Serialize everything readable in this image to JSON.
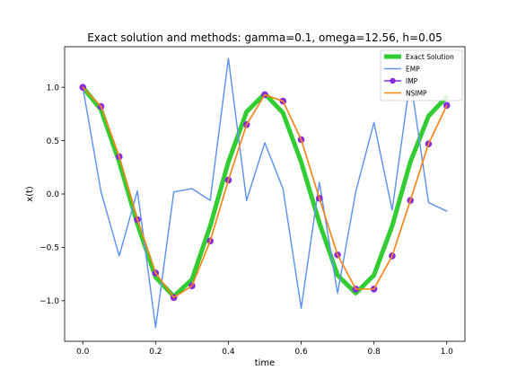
{
  "chart_data": {
    "type": "line",
    "title": "Exact solution and methods: gamma=0.1, omega=12.56, h=0.05",
    "xlabel": "time",
    "ylabel": "x(t)",
    "xlim": [
      -0.05,
      1.05
    ],
    "ylim": [
      -1.38,
      1.38
    ],
    "xticks": [
      {
        "value": 0.0,
        "label": "0.0"
      },
      {
        "value": 0.2,
        "label": "0.2"
      },
      {
        "value": 0.4,
        "label": "0.4"
      },
      {
        "value": 0.6,
        "label": "0.6"
      },
      {
        "value": 0.8,
        "label": "0.8"
      },
      {
        "value": 1.0,
        "label": "1.0"
      }
    ],
    "yticks": [
      {
        "value": 1.0,
        "label": "1.0"
      },
      {
        "value": 0.5,
        "label": "0.5"
      },
      {
        "value": 0.0,
        "label": "0.0"
      },
      {
        "value": -0.5,
        "label": "−0.5"
      },
      {
        "value": -1.0,
        "label": "−1.0"
      }
    ],
    "grid": false,
    "legend_position": "top-right",
    "x": [
      0.0,
      0.05,
      0.1,
      0.15,
      0.2,
      0.25,
      0.3,
      0.35,
      0.4,
      0.45,
      0.5,
      0.55,
      0.6,
      0.65,
      0.7,
      0.75,
      0.8,
      0.85,
      0.9,
      0.95,
      1.0
    ],
    "series": [
      {
        "name": "Exact Solution",
        "color": "#32cd32",
        "line_width": 5,
        "marker": "none",
        "values": [
          1.0,
          0.79,
          0.3,
          -0.28,
          -0.78,
          -0.96,
          -0.8,
          -0.3,
          0.3,
          0.77,
          0.94,
          0.76,
          0.3,
          -0.27,
          -0.76,
          -0.93,
          -0.76,
          -0.3,
          0.3,
          0.73,
          0.91
        ]
      },
      {
        "name": "EMP",
        "color": "#6495ed",
        "line_width": 1.5,
        "marker": "none",
        "values": [
          1.0,
          0.02,
          -0.58,
          0.03,
          -1.25,
          0.02,
          0.05,
          -0.06,
          1.27,
          -0.06,
          0.48,
          0.05,
          -1.07,
          0.11,
          -0.93,
          0.02,
          0.67,
          -0.15,
          1.08,
          -0.08,
          -0.16
        ]
      },
      {
        "name": "IMP",
        "color": "#8a2be2",
        "line_width": 1.5,
        "marker": "circle",
        "values": [
          1.0,
          0.82,
          0.35,
          -0.24,
          -0.74,
          -0.97,
          -0.86,
          -0.44,
          0.13,
          0.65,
          0.93,
          0.87,
          0.51,
          -0.04,
          -0.57,
          -0.89,
          -0.89,
          -0.58,
          -0.06,
          0.47,
          0.83
        ]
      },
      {
        "name": "NSIMP",
        "color": "#ff8c00",
        "line_width": 1.5,
        "marker": "none",
        "values": [
          1.0,
          0.82,
          0.35,
          -0.24,
          -0.74,
          -0.97,
          -0.86,
          -0.44,
          0.13,
          0.65,
          0.93,
          0.87,
          0.51,
          -0.04,
          -0.57,
          -0.89,
          -0.89,
          -0.58,
          -0.06,
          0.47,
          0.83
        ]
      }
    ]
  }
}
